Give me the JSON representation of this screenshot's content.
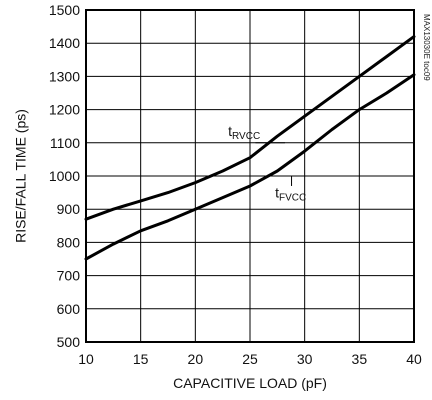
{
  "chart_data": {
    "type": "line",
    "xlabel": "CAPACITIVE LOAD (pF)",
    "ylabel": "RISE/FALL TIME (ps)",
    "xlim": [
      10,
      40
    ],
    "ylim": [
      500,
      1500
    ],
    "x_ticks": [
      10,
      15,
      20,
      25,
      30,
      35,
      40
    ],
    "y_ticks": [
      500,
      600,
      700,
      800,
      900,
      1000,
      1100,
      1200,
      1300,
      1400,
      1500
    ],
    "grid": true,
    "side_code": "MAX13030E toc09",
    "series": [
      {
        "label_main": "t",
        "label_sub": "RVCC",
        "label_at": [
          23,
          1120
        ],
        "leader": [
          [
            25.5,
            1100
          ],
          [
            28.2,
            1100
          ]
        ],
        "points": [
          [
            10,
            870
          ],
          [
            12.5,
            900
          ],
          [
            15,
            925
          ],
          [
            17.5,
            950
          ],
          [
            20,
            980
          ],
          [
            22.5,
            1015
          ],
          [
            25,
            1055
          ],
          [
            27.5,
            1120
          ],
          [
            30,
            1180
          ],
          [
            32.5,
            1240
          ],
          [
            35,
            1300
          ],
          [
            37.5,
            1360
          ],
          [
            40,
            1420
          ]
        ]
      },
      {
        "label_main": "t",
        "label_sub": "FVCC",
        "label_at": [
          27.3,
          935
        ],
        "leader": [
          [
            28.8,
            1000
          ],
          [
            28.8,
            970
          ]
        ],
        "points": [
          [
            10,
            750
          ],
          [
            12.5,
            795
          ],
          [
            15,
            835
          ],
          [
            17.5,
            865
          ],
          [
            20,
            900
          ],
          [
            22.5,
            935
          ],
          [
            25,
            970
          ],
          [
            27.5,
            1015
          ],
          [
            30,
            1075
          ],
          [
            32.5,
            1140
          ],
          [
            35,
            1200
          ],
          [
            37.5,
            1250
          ],
          [
            40,
            1305
          ]
        ]
      }
    ]
  }
}
